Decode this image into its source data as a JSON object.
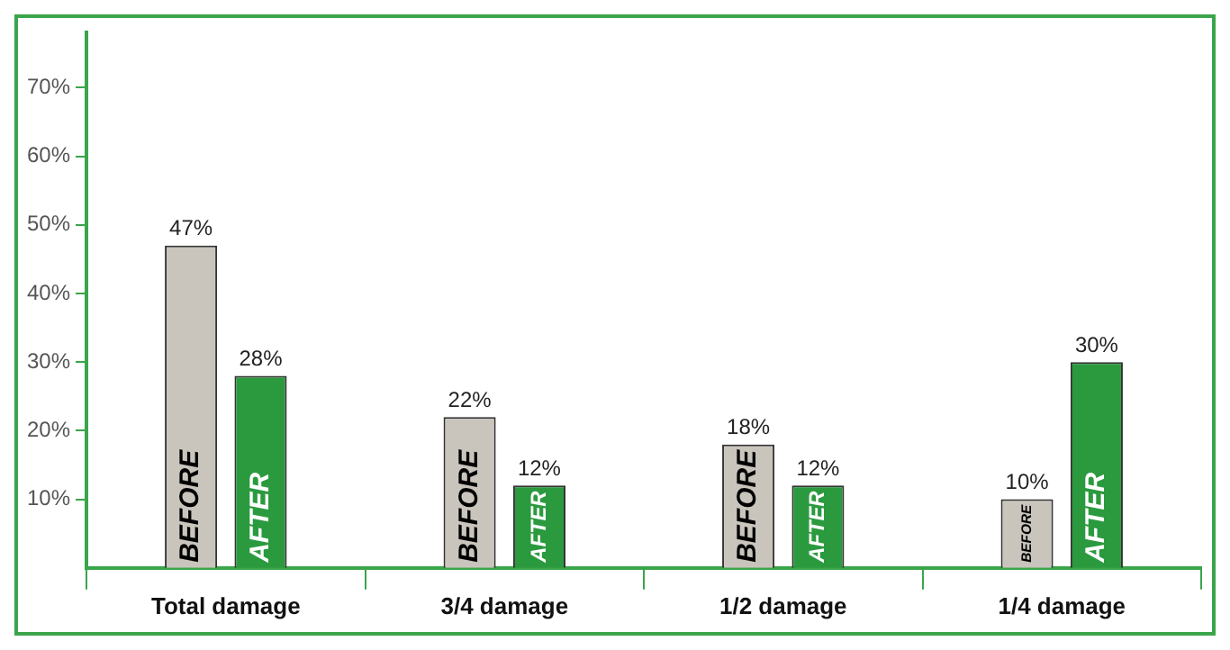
{
  "chart_data": {
    "type": "bar",
    "categories": [
      "Total damage",
      "3/4 damage",
      "1/2 damage",
      "1/4 damage"
    ],
    "series": [
      {
        "name": "BEFORE",
        "color": "#c9c5bd",
        "values": [
          47,
          22,
          18,
          10
        ],
        "value_labels": [
          "47%",
          "22%",
          "18%",
          "10%"
        ]
      },
      {
        "name": "AFTER",
        "color": "#2b9a3e",
        "values": [
          28,
          12,
          12,
          30
        ],
        "value_labels": [
          "28%",
          "12%",
          "12%",
          "30%"
        ]
      }
    ],
    "ylim": [
      0,
      78
    ],
    "yticks": [
      {
        "value": 10,
        "label": "10%"
      },
      {
        "value": 20,
        "label": "20%"
      },
      {
        "value": 30,
        "label": "30%"
      },
      {
        "value": 40,
        "label": "40%"
      },
      {
        "value": 50,
        "label": "50%"
      },
      {
        "value": 60,
        "label": "60%"
      },
      {
        "value": 70,
        "label": "70%"
      }
    ],
    "grid": false,
    "legend": false
  }
}
